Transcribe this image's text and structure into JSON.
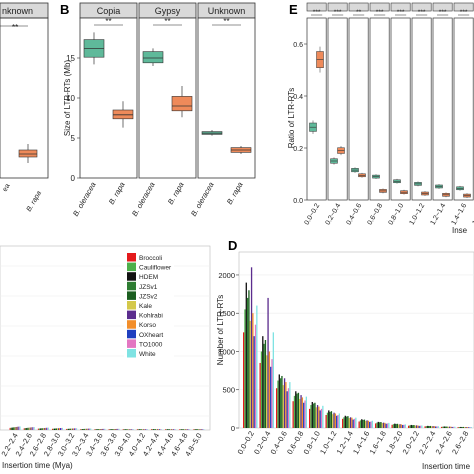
{
  "panels": {
    "A": {
      "strip_visible": "nknown",
      "tick_visible": "B. rapa"
    },
    "B": {
      "label": "B",
      "strips": [
        "Copia",
        "Gypsy",
        "Unknown"
      ],
      "sig": "**"
    },
    "C": {},
    "D": {
      "label": "D"
    },
    "E": {
      "label": "E",
      "ylabel": "Ratio of LTR-RTs",
      "xlabel_visible": "Inse"
    }
  },
  "chart_data": [
    {
      "panel": "B",
      "type": "box",
      "title": "",
      "ylabel": "Size of LTR-RTs (Mb)",
      "ylim": [
        0,
        20
      ],
      "yticks": [
        0,
        5,
        10,
        15
      ],
      "categories": [
        "B. oleracea",
        "B. rapa"
      ],
      "facets": [
        "Copia",
        "Gypsy",
        "Unknown"
      ],
      "series": [
        {
          "name": "B. oleracea",
          "color": "#5fb99a",
          "boxes": [
            {
              "facet": "Copia",
              "min": 14.2,
              "q1": 15.1,
              "median": 16.2,
              "q3": 17.3,
              "max": 18.2
            },
            {
              "facet": "Gypsy",
              "min": 14.0,
              "q1": 14.4,
              "median": 15.0,
              "q3": 15.8,
              "max": 16.2
            },
            {
              "facet": "Unknown",
              "min": 5.3,
              "q1": 5.45,
              "median": 5.6,
              "q3": 5.8,
              "max": 6.0
            }
          ]
        },
        {
          "name": "B. rapa",
          "color": "#ee8a5a",
          "boxes": [
            {
              "facet": "Copia",
              "min": 6.3,
              "q1": 7.4,
              "median": 7.9,
              "q3": 8.5,
              "max": 9.6
            },
            {
              "facet": "Gypsy",
              "min": 7.6,
              "q1": 8.4,
              "median": 9.0,
              "q3": 10.2,
              "max": 11.5
            },
            {
              "facet": "Unknown",
              "min": 3.0,
              "q1": 3.2,
              "median": 3.5,
              "q3": 3.8,
              "max": 4.0
            }
          ]
        }
      ],
      "annotations": [
        "**",
        "**",
        "**"
      ]
    },
    {
      "panel": "C",
      "type": "bar",
      "title": "",
      "xlabel": "Insertion time (Mya)",
      "categories": [
        "2.2~2.4",
        "2.4~2.6",
        "2.6~2.8",
        "2.8~3.0",
        "3.0~3.2",
        "3.2~3.4",
        "3.4~3.6",
        "3.6~3.8",
        "3.8~4.0",
        "4.0~4.2",
        "4.2~4.4",
        "4.4~4.6",
        "4.6~4.8",
        "4.8~5.0"
      ],
      "legend": {
        "position": "top-right",
        "items": [
          {
            "name": "Broccoli",
            "color": "#e41a1c"
          },
          {
            "name": "Cauliflower",
            "color": "#4daf4a"
          },
          {
            "name": "HDEM",
            "color": "#111111"
          },
          {
            "name": "JZSv1",
            "color": "#2e7d32"
          },
          {
            "name": "JZSv2",
            "color": "#1b5e20"
          },
          {
            "name": "Kale",
            "color": "#d4c84a"
          },
          {
            "name": "Kohlrabi",
            "color": "#5b2d8e"
          },
          {
            "name": "Korso",
            "color": "#f28e2b"
          },
          {
            "name": "OXheart",
            "color": "#1f3fbf"
          },
          {
            "name": "TO1000",
            "color": "#e377c2"
          },
          {
            "name": "White",
            "color": "#7fe3e3"
          }
        ]
      },
      "values": [
        12,
        10,
        8,
        7,
        6,
        5,
        4,
        4,
        3,
        3,
        2,
        2,
        2,
        2
      ]
    },
    {
      "panel": "D",
      "type": "bar",
      "title": "",
      "xlabel": "Insertion time",
      "ylabel": "Number of LTR-RTs",
      "ylim": [
        0,
        2300
      ],
      "yticks": [
        0,
        500,
        1000,
        1500,
        2000
      ],
      "categories": [
        "0.0~0.2",
        "0.2~0.4",
        "0.4~0.6",
        "0.6~0.8",
        "0.8~1.0",
        "1.0~1.2",
        "1.2~1.4",
        "1.4~1.6",
        "1.6~1.8",
        "1.8~2.0",
        "2.0~2.2",
        "2.2~2.4",
        "2.4~2.6",
        "2.6~2.8"
      ],
      "series_colors": [
        "#e41a1c",
        "#4daf4a",
        "#111111",
        "#2e7d32",
        "#1b5e20",
        "#d4c84a",
        "#5b2d8e",
        "#f28e2b",
        "#1f3fbf",
        "#e377c2",
        "#7fe3e3"
      ],
      "values": [
        [
          1250,
          1550,
          1900,
          1700,
          1800,
          1400,
          2100,
          1500,
          1200,
          1350,
          1600
        ],
        [
          850,
          1000,
          1200,
          1100,
          1150,
          950,
          1700,
          1000,
          800,
          900,
          1250
        ],
        [
          520,
          620,
          700,
          650,
          680,
          560,
          650,
          600,
          480,
          520,
          600
        ],
        [
          350,
          420,
          480,
          450,
          460,
          380,
          430,
          400,
          330,
          360,
          410
        ],
        [
          250,
          300,
          340,
          320,
          330,
          270,
          300,
          280,
          230,
          250,
          290
        ],
        [
          170,
          200,
          230,
          210,
          220,
          180,
          200,
          190,
          160,
          170,
          190
        ],
        [
          120,
          140,
          160,
          150,
          155,
          130,
          140,
          135,
          110,
          120,
          135
        ],
        [
          85,
          100,
          115,
          105,
          110,
          92,
          100,
          95,
          80,
          85,
          95
        ],
        [
          60,
          70,
          80,
          75,
          78,
          65,
          70,
          67,
          56,
          60,
          67
        ],
        [
          42,
          50,
          57,
          53,
          55,
          46,
          50,
          47,
          40,
          42,
          47
        ],
        [
          30,
          35,
          40,
          37,
          39,
          32,
          35,
          33,
          28,
          30,
          33
        ],
        [
          22,
          25,
          28,
          26,
          27,
          23,
          25,
          24,
          20,
          21,
          23
        ],
        [
          15,
          18,
          20,
          19,
          19,
          16,
          18,
          17,
          14,
          15,
          17
        ],
        [
          11,
          13,
          14,
          13,
          14,
          12,
          13,
          12,
          10,
          11,
          12
        ]
      ]
    },
    {
      "panel": "E",
      "type": "box",
      "title": "",
      "ylabel": "Ratio of LTR-RTs",
      "ylim": [
        0,
        0.7
      ],
      "yticks": [
        0.0,
        0.2,
        0.4,
        0.6
      ],
      "categories": [
        "0.0~0.2",
        "0.2~0.4",
        "0.4~0.6",
        "0.6~0.8",
        "0.8~1.0",
        "1.0~1.2",
        "1.2~1.4",
        "1.4~1.6",
        "1.6~1.8"
      ],
      "facet_sig": [
        "***",
        "***",
        "**",
        "***",
        "***",
        "***",
        "***",
        "***",
        "***"
      ],
      "series": [
        {
          "name": "B. oleracea",
          "color": "#5fb99a",
          "values": [
            0.28,
            0.15,
            0.115,
            0.09,
            0.072,
            0.062,
            0.052,
            0.045,
            0.04
          ]
        },
        {
          "name": "B. rapa",
          "color": "#ee8a5a",
          "values": [
            0.54,
            0.19,
            0.095,
            0.035,
            0.03,
            0.025,
            0.02,
            0.017,
            0.015
          ]
        }
      ]
    }
  ]
}
